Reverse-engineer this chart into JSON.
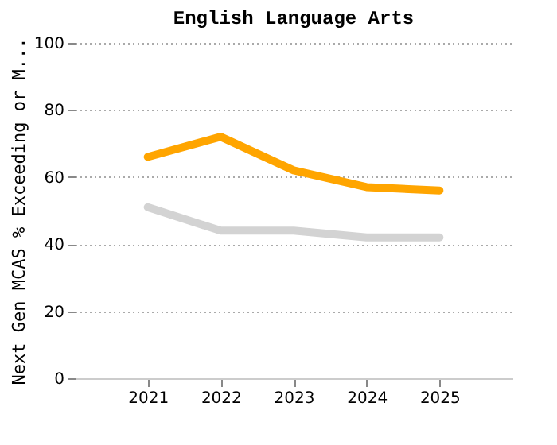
{
  "chart_data": {
    "type": "line",
    "title": "English Language Arts",
    "ylabel": "Next Gen MCAS % Exceeding or M...",
    "categories": [
      "2021",
      "2022",
      "2023",
      "2024",
      "2025"
    ],
    "series": [
      {
        "color": "#ffa500",
        "values": [
          66,
          72,
          62,
          57,
          56
        ]
      },
      {
        "color": "#d3d3d3",
        "values": [
          51,
          44,
          44,
          42,
          42
        ]
      }
    ],
    "ylim": [
      0,
      100
    ],
    "yticks": [
      0,
      20,
      40,
      60,
      80,
      100
    ],
    "grid": "y",
    "legend": false,
    "marker": "none",
    "line_style": "solid"
  }
}
